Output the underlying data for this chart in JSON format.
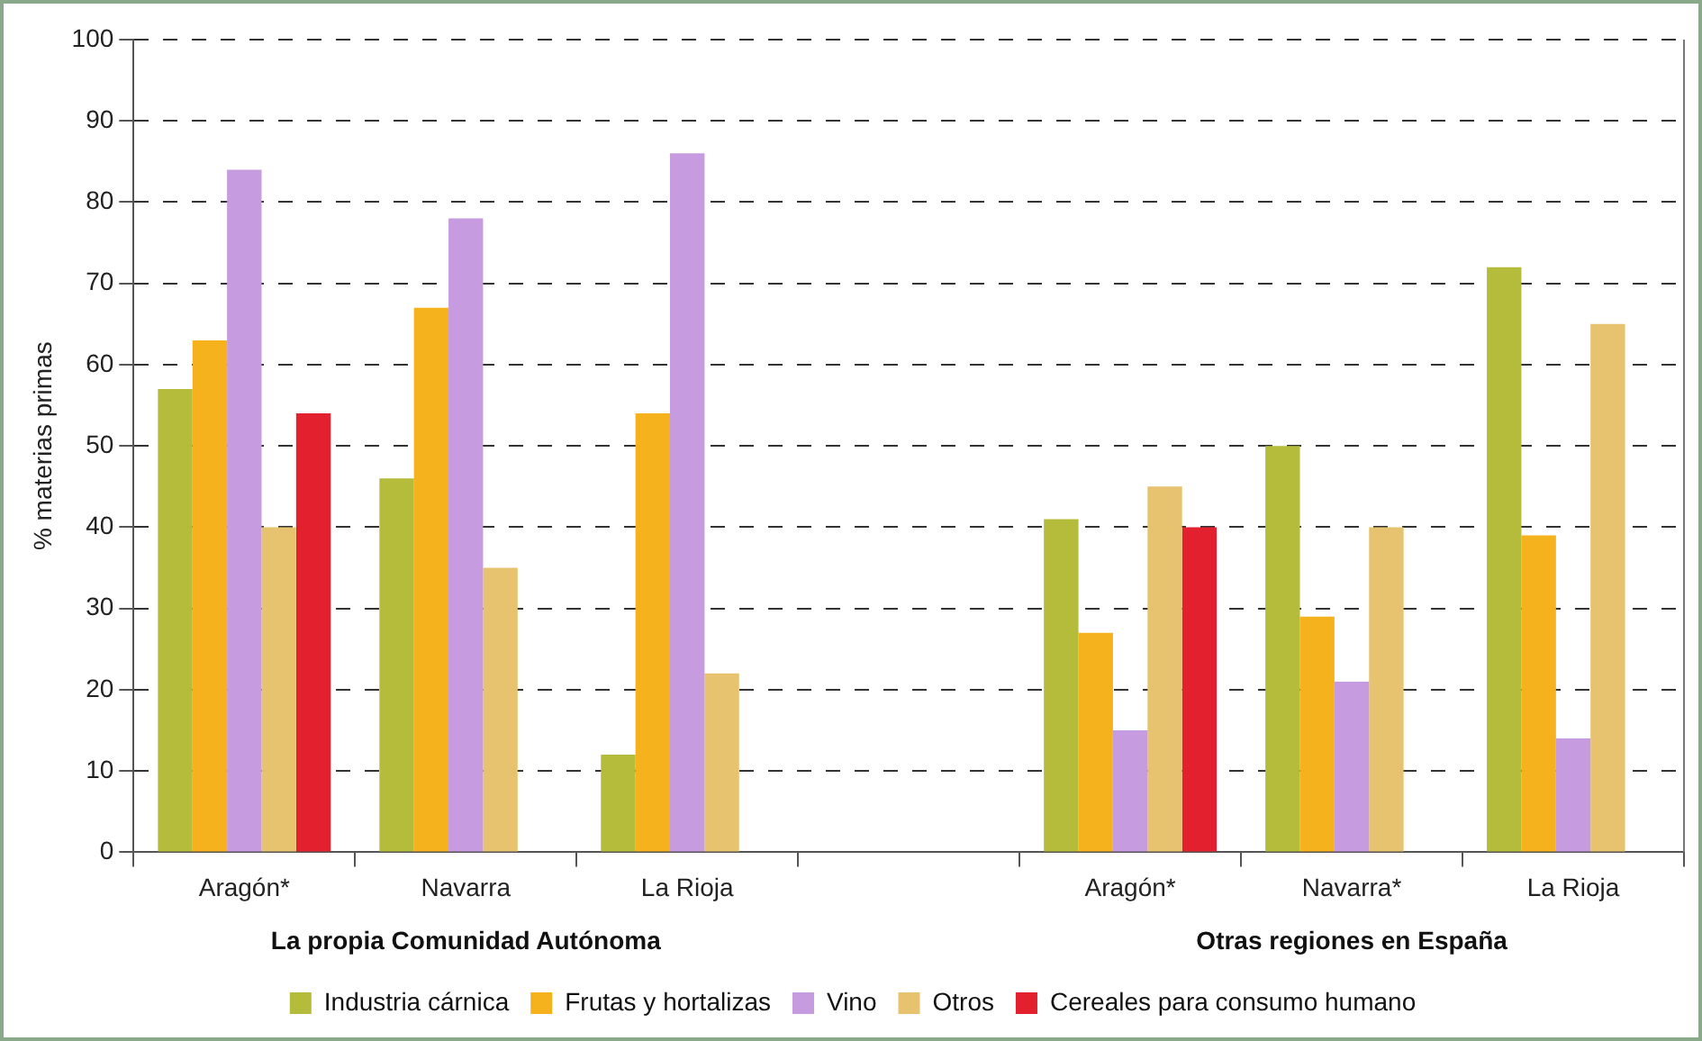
{
  "chart_data": {
    "type": "bar",
    "ylabel": "% materias primas",
    "categories": [
      "Aragón*",
      "Navarra",
      "La Rioja",
      null,
      "Aragón*",
      "Navarra*",
      "La Rioja"
    ],
    "series": [
      {
        "name": "Industria cárnica",
        "color": "#b5bb3a",
        "values": [
          57,
          46,
          12,
          null,
          41,
          50,
          72
        ]
      },
      {
        "name": "Frutas y hortalizas",
        "color": "#f5b21c",
        "values": [
          63,
          67,
          54,
          null,
          27,
          29,
          39
        ]
      },
      {
        "name": "Vino",
        "color": "#c79be0",
        "values": [
          84,
          78,
          86,
          null,
          15,
          21,
          14
        ]
      },
      {
        "name": "Otros",
        "color": "#e8c36f",
        "values": [
          40,
          35,
          22,
          null,
          45,
          40,
          65
        ]
      },
      {
        "name": "Cereales para consumo humano",
        "color": "#e3202e",
        "values": [
          54,
          null,
          null,
          null,
          40,
          null,
          null
        ]
      }
    ],
    "ylim": [
      0,
      100
    ],
    "yticks": [
      0,
      10,
      20,
      30,
      40,
      50,
      60,
      70,
      80,
      90,
      100
    ],
    "grid": "y",
    "line_style": "dashed",
    "legend": "bottom",
    "annotations": [
      "La propia Comunidad Autónoma",
      "Otras regiones en España"
    ]
  }
}
